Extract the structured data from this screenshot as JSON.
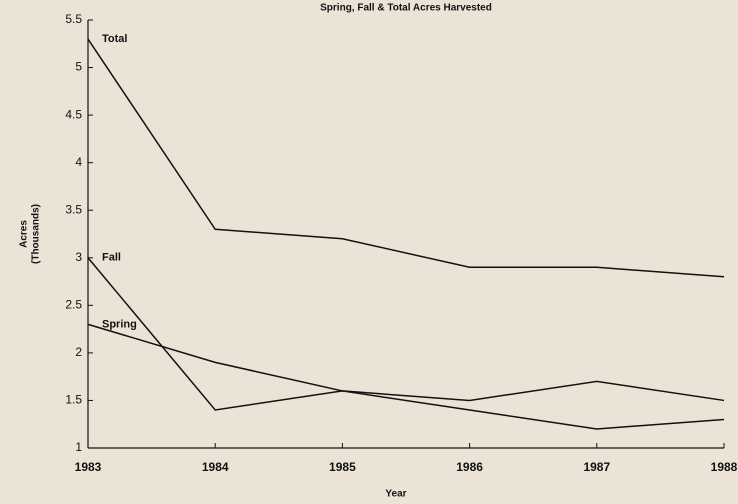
{
  "chart_data": {
    "type": "line",
    "title": "Spring, Fall & Total Acres Harvested",
    "x_label": "Year",
    "y_label": [
      "Acres",
      "(Thousands)"
    ],
    "x": [
      1983,
      1984,
      1985,
      1986,
      1987,
      1988
    ],
    "xlim": [
      1983,
      1988
    ],
    "xticks": [
      1983,
      1984,
      1985,
      1986,
      1987,
      1988
    ],
    "ylim": [
      1,
      5.5
    ],
    "yticks": [
      1,
      1.5,
      2,
      2.5,
      3,
      3.5,
      4,
      4.5,
      5,
      5.5
    ],
    "series": [
      {
        "name": "Total",
        "color": "#111111",
        "values": [
          5.3,
          3.3,
          3.2,
          2.9,
          2.9,
          2.8
        ]
      },
      {
        "name": "Fall",
        "color": "#111111",
        "values": [
          3.0,
          1.4,
          1.6,
          1.5,
          1.7,
          1.5
        ]
      },
      {
        "name": "Spring",
        "color": "#111111",
        "values": [
          2.3,
          1.9,
          1.6,
          1.4,
          1.2,
          1.3
        ]
      }
    ]
  }
}
